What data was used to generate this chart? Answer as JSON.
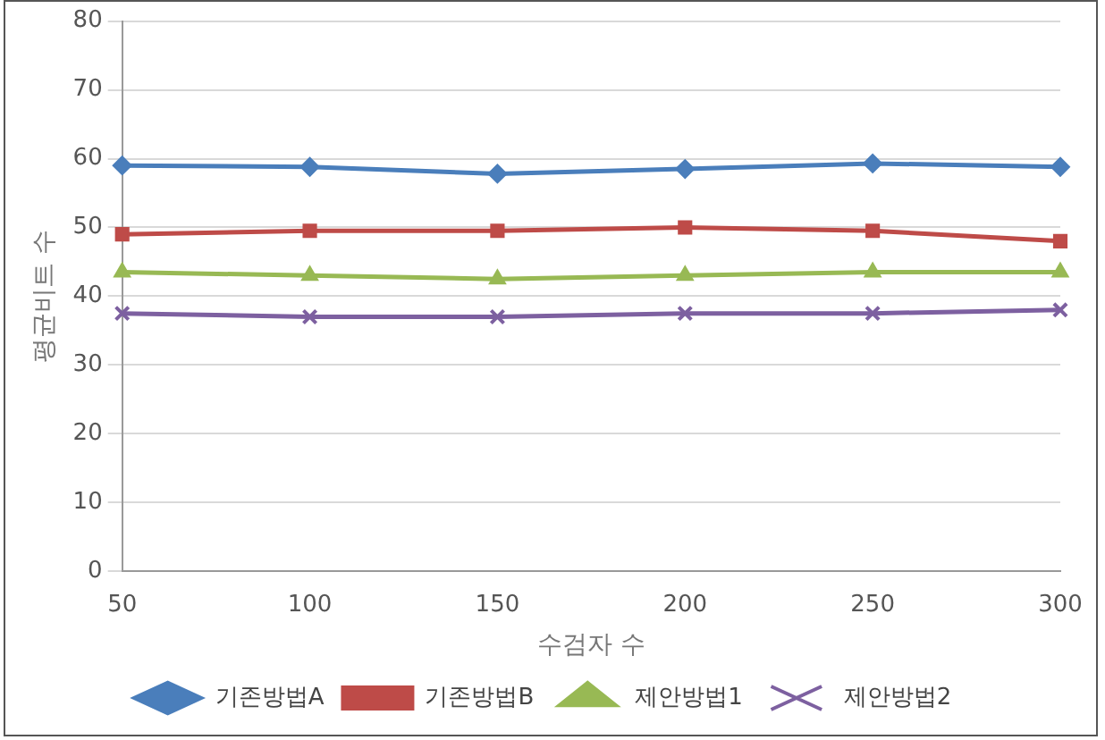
{
  "chart_data": {
    "type": "line",
    "xlabel": "수검자 수",
    "ylabel": "평균비트 수",
    "categories": [
      "50",
      "100",
      "150",
      "200",
      "250",
      "300"
    ],
    "series": [
      {
        "name": "기존방법A",
        "color": "#4a7ebb",
        "marker": "diamond",
        "values": [
          59,
          58.8,
          57.8,
          58.5,
          59.3,
          58.8
        ]
      },
      {
        "name": "기존방법B",
        "color": "#be4b48",
        "marker": "square",
        "values": [
          49,
          49.5,
          49.5,
          50,
          49.5,
          48
        ]
      },
      {
        "name": "제안방법1",
        "color": "#98b954",
        "marker": "triangle",
        "values": [
          43.5,
          43,
          42.5,
          43,
          43.5,
          43.5
        ]
      },
      {
        "name": "제안방법2",
        "color": "#7d60a0",
        "marker": "cross",
        "values": [
          37.5,
          37,
          37,
          37.5,
          37.5,
          38
        ]
      }
    ],
    "ylim": [
      0,
      80
    ],
    "yticks": [
      0,
      10,
      20,
      30,
      40,
      50,
      60,
      70,
      80
    ],
    "grid": "y",
    "legend": "bottom"
  }
}
